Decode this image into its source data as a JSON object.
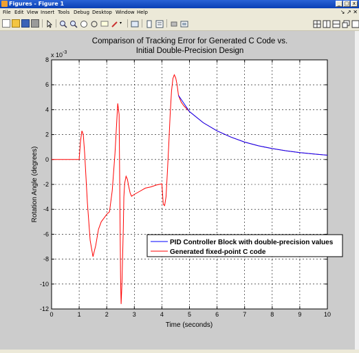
{
  "window": {
    "title": "Figures - Figure 1",
    "buttons": [
      "_",
      "□",
      "x"
    ]
  },
  "menu": {
    "items": [
      "File",
      "Edit",
      "View",
      "Insert",
      "Tools",
      "Debug",
      "Desktop",
      "Window",
      "Help"
    ],
    "right": "↘  ↗ ✕"
  },
  "toolbar": {
    "icons": [
      "new-figure-icon",
      "open-file-icon",
      "save-icon",
      "print-icon",
      "edit-plot-icon",
      "zoom-in-icon",
      "zoom-out-icon",
      "pan-icon",
      "rotate-3d-icon",
      "data-cursor-icon",
      "brush-icon",
      "link-plot-icon",
      "colorbar-icon",
      "legend-icon",
      "hide-plot-tools-icon",
      "show-plot-tools-icon",
      "tile-icon",
      "left-right-icon",
      "top-bottom-icon",
      "float-icon",
      "dock-icon"
    ]
  },
  "chart_data": {
    "type": "line",
    "title": "Comparison of Tracking Error for Generated C Code vs. Initial Double-Precision Design",
    "title_lines": [
      "Comparison of Tracking Error for Generated C Code vs.",
      "Initial Double-Precision Design"
    ],
    "xlabel": "Time (seconds)",
    "ylabel": "Rotation Angle (degrees)",
    "exponent_label": "x 10",
    "exponent": "-3",
    "xlim": [
      0,
      10
    ],
    "ylim": [
      -12,
      8
    ],
    "xticks": [
      "0",
      "1",
      "2",
      "3",
      "4",
      "5",
      "6",
      "7",
      "8",
      "9",
      "10"
    ],
    "yticks": [
      "8",
      "6",
      "4",
      "2",
      "0",
      "-2",
      "-4",
      "-6",
      "-8",
      "-10",
      "-12"
    ],
    "grid": true,
    "legend_position": "bottom-right",
    "series": [
      {
        "name": "PID Controller Block with double-precision values",
        "color": "#0000ff",
        "x": [
          4.6,
          5.0,
          5.5,
          6.0,
          6.5,
          7.0,
          7.5,
          8.0,
          8.5,
          9.0,
          9.5,
          10.0
        ],
        "y": [
          5.15,
          3.85,
          2.95,
          2.3,
          1.8,
          1.4,
          1.1,
          0.88,
          0.7,
          0.56,
          0.45,
          0.35
        ]
      },
      {
        "name": "Generated fixed-point C code",
        "color": "#ff0000",
        "x": [
          0,
          1.0,
          1.05,
          1.1,
          1.15,
          1.2,
          1.3,
          1.4,
          1.5,
          1.6,
          1.7,
          1.8,
          1.9,
          2.0,
          2.1,
          2.2,
          2.3,
          2.4,
          2.45,
          2.5,
          2.52,
          2.55,
          2.6,
          2.62,
          2.65,
          2.7,
          2.75,
          2.8,
          2.85,
          2.9,
          3.0,
          3.2,
          3.4,
          3.6,
          3.8,
          4.0,
          4.05,
          4.1,
          4.15,
          4.2,
          4.25,
          4.3,
          4.35,
          4.4,
          4.45,
          4.5,
          4.55,
          4.6,
          4.7,
          4.8,
          5.0,
          5.5,
          6.0,
          6.5,
          7.0,
          7.5,
          8.0,
          8.5,
          9.0,
          9.5,
          10.0
        ],
        "y": [
          0,
          0,
          1.5,
          2.3,
          2.0,
          0.5,
          -3.5,
          -6.5,
          -7.8,
          -6.9,
          -5.6,
          -5.0,
          -4.7,
          -4.4,
          -4.2,
          -2.5,
          0.5,
          4.5,
          3.6,
          -9.5,
          -11.6,
          -10.0,
          -5.5,
          -3.0,
          -1.9,
          -1.35,
          -1.6,
          -2.2,
          -2.7,
          -2.95,
          -2.8,
          -2.55,
          -2.3,
          -2.2,
          -2.05,
          -1.95,
          -3.6,
          -3.7,
          -3.0,
          -1.0,
          1.2,
          3.6,
          5.5,
          6.5,
          6.8,
          6.55,
          6.0,
          5.15,
          4.6,
          4.3,
          3.85,
          2.95,
          2.3,
          1.8,
          1.4,
          1.1,
          0.88,
          0.7,
          0.56,
          0.45,
          0.35
        ]
      }
    ]
  }
}
